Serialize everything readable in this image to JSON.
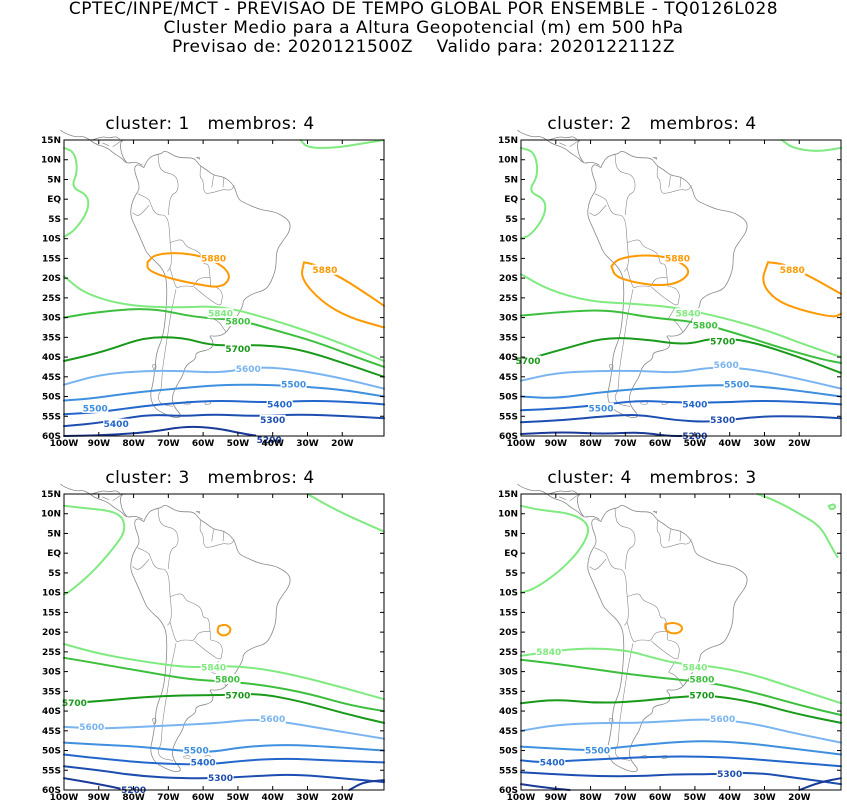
{
  "header": {
    "line1": "CPTEC/INPE/MCT - PREVISAO DE TEMPO GLOBAL POR ENSEMBLE - TQ0126L028",
    "line2": "Cluster Medio para a Altura Geopotencial (m) em 500 hPa",
    "line3": "Previsao de: 2020121500Z    Valido para: 2020122112Z"
  },
  "axes": {
    "lat_labels": [
      "15N",
      "10N",
      "5N",
      "EQ",
      "5S",
      "10S",
      "15S",
      "20S",
      "25S",
      "30S",
      "35S",
      "40S",
      "45S",
      "50S",
      "55S",
      "60S"
    ],
    "lon_labels": [
      "100W",
      "90W",
      "80W",
      "70W",
      "60W",
      "50W",
      "40W",
      "30W",
      "20W"
    ]
  },
  "colors": {
    "c5880": "#ff9900",
    "c5840": "#7fea7f",
    "c5800": "#3cbf3c",
    "c5700": "#199919",
    "c5600": "#7ab4f0",
    "c5500": "#3f8fdf",
    "c5400": "#2266cc",
    "c5300": "#1c4db0",
    "c5200": "#1a3a99",
    "coast": "#888888"
  },
  "panels": [
    {
      "title": "cluster: 1   membros: 4",
      "labels": [
        {
          "text": "5880",
          "lon": -57,
          "lat": -15,
          "level": "c5880"
        },
        {
          "text": "5880",
          "lon": -25,
          "lat": -18,
          "level": "c5880"
        },
        {
          "text": "5840",
          "lon": -55,
          "lat": -29,
          "level": "c5840"
        },
        {
          "text": "5800",
          "lon": -50,
          "lat": -31,
          "level": "c5800"
        },
        {
          "text": "5700",
          "lon": -50,
          "lat": -38,
          "level": "c5700"
        },
        {
          "text": "5600",
          "lon": -47,
          "lat": -43,
          "level": "c5600"
        },
        {
          "text": "5500",
          "lon": -34,
          "lat": -47,
          "level": "c5500"
        },
        {
          "text": "5500",
          "lon": -91,
          "lat": -53,
          "level": "c5500"
        },
        {
          "text": "5400",
          "lon": -38,
          "lat": -52,
          "level": "c5400"
        },
        {
          "text": "5400",
          "lon": -85,
          "lat": -57,
          "level": "c5400"
        },
        {
          "text": "5300",
          "lon": -40,
          "lat": -56,
          "level": "c5300"
        },
        {
          "text": "5200",
          "lon": -41,
          "lat": -61,
          "level": "c5200"
        }
      ]
    },
    {
      "title": "cluster: 2   membros: 4",
      "labels": [
        {
          "text": "5880",
          "lon": -55,
          "lat": -15,
          "level": "c5880"
        },
        {
          "text": "5880",
          "lon": -22,
          "lat": -18,
          "level": "c5880"
        },
        {
          "text": "5840",
          "lon": -52,
          "lat": -29,
          "level": "c5840"
        },
        {
          "text": "5800",
          "lon": -47,
          "lat": -32,
          "level": "c5800"
        },
        {
          "text": "5700",
          "lon": -42,
          "lat": -36,
          "level": "c5700"
        },
        {
          "text": "5700",
          "lon": -98,
          "lat": -41,
          "level": "c5700"
        },
        {
          "text": "5600",
          "lon": -41,
          "lat": -42,
          "level": "c5600"
        },
        {
          "text": "5500",
          "lon": -38,
          "lat": -47,
          "level": "c5500"
        },
        {
          "text": "5500",
          "lon": -77,
          "lat": -53,
          "level": "c5500"
        },
        {
          "text": "5400",
          "lon": -50,
          "lat": -52,
          "level": "c5400"
        },
        {
          "text": "5300",
          "lon": -42,
          "lat": -56,
          "level": "c5300"
        },
        {
          "text": "5200",
          "lon": -50,
          "lat": -60,
          "level": "c5200"
        }
      ]
    },
    {
      "title": "cluster: 3   membros: 4",
      "labels": [
        {
          "text": "5840",
          "lon": -57,
          "lat": -29,
          "level": "c5840"
        },
        {
          "text": "5800",
          "lon": -53,
          "lat": -32,
          "level": "c5800"
        },
        {
          "text": "5700",
          "lon": -50,
          "lat": -36,
          "level": "c5700"
        },
        {
          "text": "5700",
          "lon": -97,
          "lat": -38,
          "level": "c5700"
        },
        {
          "text": "5600",
          "lon": -40,
          "lat": -42,
          "level": "c5600"
        },
        {
          "text": "5600",
          "lon": -92,
          "lat": -44,
          "level": "c5600"
        },
        {
          "text": "5500",
          "lon": -62,
          "lat": -50,
          "level": "c5500"
        },
        {
          "text": "5400",
          "lon": -60,
          "lat": -53,
          "level": "c5400"
        },
        {
          "text": "5300",
          "lon": -55,
          "lat": -57,
          "level": "c5300"
        },
        {
          "text": "5200",
          "lon": -80,
          "lat": -60,
          "level": "c5200"
        }
      ]
    },
    {
      "title": "cluster: 4   membros: 3",
      "labels": [
        {
          "text": "5840",
          "lon": -92,
          "lat": -25,
          "level": "c5840"
        },
        {
          "text": "5840",
          "lon": -50,
          "lat": -29,
          "level": "c5840"
        },
        {
          "text": "5800",
          "lon": -48,
          "lat": -32,
          "level": "c5800"
        },
        {
          "text": "5700",
          "lon": -48,
          "lat": -36,
          "level": "c5700"
        },
        {
          "text": "5600",
          "lon": -42,
          "lat": -42,
          "level": "c5600"
        },
        {
          "text": "5500",
          "lon": -78,
          "lat": -50,
          "level": "c5500"
        },
        {
          "text": "5400",
          "lon": -91,
          "lat": -53,
          "level": "c5400"
        },
        {
          "text": "5300",
          "lon": -40,
          "lat": -56,
          "level": "c5300"
        }
      ]
    }
  ]
}
